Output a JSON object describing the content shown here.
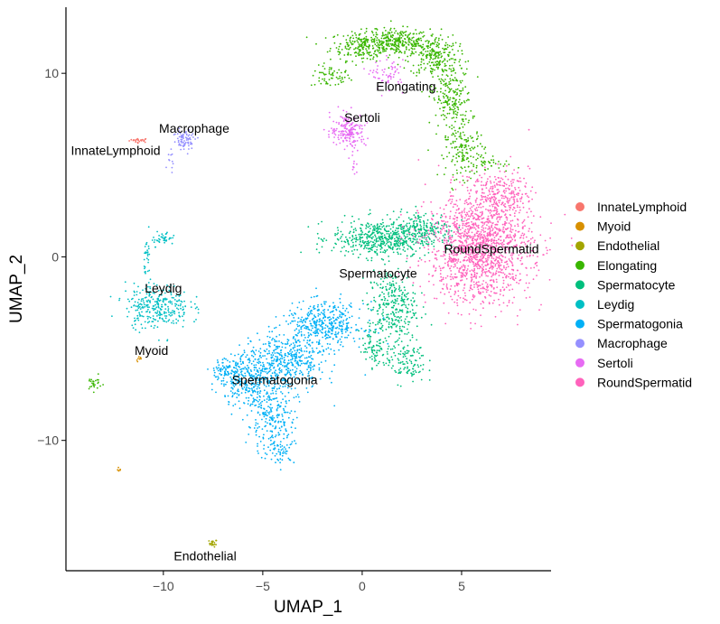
{
  "chart_data": {
    "type": "scatter",
    "title": "",
    "xlabel": "UMAP_1",
    "ylabel": "UMAP_2",
    "xlim": [
      -14.9,
      9.5
    ],
    "ylim": [
      -17.1,
      13.6
    ],
    "xticks": [
      -10,
      -5,
      0,
      5
    ],
    "yticks": [
      10,
      0,
      -10
    ],
    "xtick_labels": [
      "−10",
      "−5",
      "0",
      "5"
    ],
    "ytick_labels": [
      "10",
      "0",
      "−10"
    ],
    "grid": false,
    "legend_position": "right",
    "note": "Points are approximated as Gaussian blobs per cluster: center [x,y], sd [x,y], n points",
    "clusters": [
      {
        "name": "InnateLymphoid",
        "color": "#F8766D",
        "label_at": [
          -12.4,
          5.8
        ],
        "blobs": [
          [
            [
              -11.2,
              6.35
            ],
            [
              0.25,
              0.06
            ],
            25
          ]
        ]
      },
      {
        "name": "Myoid",
        "color": "#D89000",
        "label_at": [
          -10.6,
          -5.1
        ],
        "blobs": [
          [
            [
              -11.2,
              -5.6
            ],
            [
              0.08,
              0.08
            ],
            8
          ],
          [
            [
              -12.2,
              -11.6
            ],
            [
              0.05,
              0.08
            ],
            6
          ]
        ]
      },
      {
        "name": "Endothelial",
        "color": "#A3A500",
        "label_at": [
          -7.9,
          -16.3
        ],
        "blobs": [
          [
            [
              -7.5,
              -15.6
            ],
            [
              0.1,
              0.1
            ],
            20
          ]
        ]
      },
      {
        "name": "Elongating",
        "color": "#39B600",
        "label_at": [
          2.2,
          9.3
        ],
        "blobs": [
          [
            [
              -1.6,
              9.8
            ],
            [
              0.5,
              0.3
            ],
            60
          ],
          [
            [
              0.0,
              11.5
            ],
            [
              0.8,
              0.4
            ],
            220
          ],
          [
            [
              1.8,
              11.7
            ],
            [
              0.8,
              0.35
            ],
            260
          ],
          [
            [
              3.6,
              11.0
            ],
            [
              0.6,
              0.6
            ],
            220
          ],
          [
            [
              4.5,
              8.6
            ],
            [
              0.5,
              1.0
            ],
            220
          ],
          [
            [
              5.2,
              5.7
            ],
            [
              0.5,
              0.7
            ],
            150
          ],
          [
            [
              6.5,
              5.0
            ],
            [
              0.5,
              0.2
            ],
            30
          ],
          [
            [
              -13.5,
              -6.9
            ],
            [
              0.2,
              0.2
            ],
            25
          ]
        ]
      },
      {
        "name": "Spermatocyte",
        "color": "#00BF7D",
        "label_at": [
          0.8,
          -0.9
        ],
        "blobs": [
          [
            [
              0.9,
              1.0
            ],
            [
              1.2,
              0.5
            ],
            500
          ],
          [
            [
              3.1,
              1.5
            ],
            [
              0.8,
              0.5
            ],
            200
          ],
          [
            [
              1.5,
              -2.7
            ],
            [
              0.6,
              1.0
            ],
            300
          ],
          [
            [
              2.2,
              -5.7
            ],
            [
              0.5,
              0.6
            ],
            120
          ],
          [
            [
              0.6,
              -4.9
            ],
            [
              0.3,
              0.6
            ],
            80
          ]
        ]
      },
      {
        "name": "Leydig",
        "color": "#00BFC4",
        "label_at": [
          -10.0,
          -1.7
        ],
        "blobs": [
          [
            [
              -10.3,
              -2.7
            ],
            [
              0.8,
              0.6
            ],
            300
          ],
          [
            [
              -10.0,
              1.0
            ],
            [
              0.3,
              0.2
            ],
            40
          ],
          [
            [
              -10.8,
              0.0
            ],
            [
              0.08,
              0.6
            ],
            30
          ]
        ]
      },
      {
        "name": "Spermatogonia",
        "color": "#00B0F6",
        "label_at": [
          -4.4,
          -6.7
        ],
        "blobs": [
          [
            [
              -1.9,
              -3.7
            ],
            [
              1.0,
              0.6
            ],
            400
          ],
          [
            [
              -3.7,
              -5.7
            ],
            [
              0.9,
              0.8
            ],
            400
          ],
          [
            [
              -5.5,
              -6.7
            ],
            [
              0.8,
              0.8
            ],
            350
          ],
          [
            [
              -4.6,
              -9.1
            ],
            [
              0.6,
              0.9
            ],
            200
          ],
          [
            [
              -6.9,
              -6.2
            ],
            [
              0.4,
              0.3
            ],
            80
          ],
          [
            [
              -4.0,
              -10.6
            ],
            [
              0.3,
              0.3
            ],
            40
          ]
        ]
      },
      {
        "name": "Macrophage",
        "color": "#9590FF",
        "label_at": [
          -8.45,
          7.0
        ],
        "blobs": [
          [
            [
              -8.9,
              6.4
            ],
            [
              0.3,
              0.3
            ],
            80
          ],
          [
            [
              -9.6,
              5.2
            ],
            [
              0.1,
              0.3
            ],
            10
          ]
        ]
      },
      {
        "name": "Sertoli",
        "color": "#E76BF3",
        "label_at": [
          0.0,
          7.6
        ],
        "blobs": [
          [
            [
              -0.7,
              6.9
            ],
            [
              0.45,
              0.45
            ],
            180
          ],
          [
            [
              1.3,
              9.9
            ],
            [
              0.4,
              0.4
            ],
            60
          ],
          [
            [
              -0.4,
              5.4
            ],
            [
              0.1,
              0.5
            ],
            15
          ]
        ]
      },
      {
        "name": "RoundSpermatid",
        "color": "#FF62BC",
        "label_at": [
          6.5,
          0.45
        ],
        "blobs": [
          [
            [
              5.9,
              0.5
            ],
            [
              1.3,
              1.5
            ],
            1500
          ],
          [
            [
              7.0,
              3.5
            ],
            [
              0.7,
              0.6
            ],
            200
          ]
        ]
      }
    ]
  }
}
